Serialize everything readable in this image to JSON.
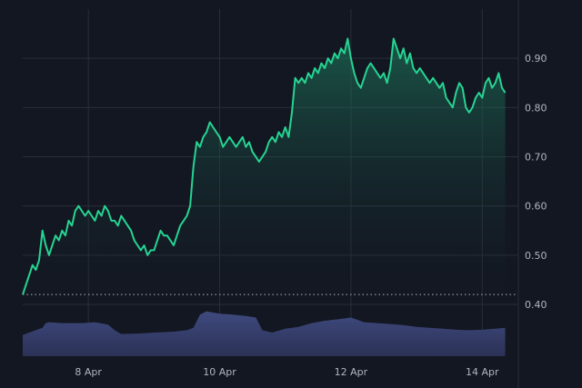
{
  "chart_data": {
    "type": "area",
    "title": "",
    "xlabel": "",
    "ylabel": "",
    "ylim": [
      0.4,
      1.0
    ],
    "y_axis_position": "right",
    "grid": true,
    "x_tick_labels": [
      "8 Apr",
      "10 Apr",
      "12 Apr",
      "14 Apr"
    ],
    "x_tick_positions": [
      1.0,
      3.0,
      5.0,
      7.0
    ],
    "y_ticks": [
      0.4,
      0.5,
      0.6,
      0.7,
      0.8,
      0.9
    ],
    "y_tick_labels": [
      "0.40",
      "0.50",
      "0.60",
      "0.70",
      "0.80",
      "0.90"
    ],
    "reference_line": 0.42,
    "xlim": [
      0.0,
      7.55
    ],
    "series": [
      {
        "role": "price",
        "color": "#26d492",
        "points": [
          [
            0.0,
            0.42
          ],
          [
            0.05,
            0.44
          ],
          [
            0.1,
            0.46
          ],
          [
            0.15,
            0.48
          ],
          [
            0.2,
            0.47
          ],
          [
            0.25,
            0.49
          ],
          [
            0.3,
            0.55
          ],
          [
            0.35,
            0.52
          ],
          [
            0.4,
            0.5
          ],
          [
            0.45,
            0.52
          ],
          [
            0.5,
            0.54
          ],
          [
            0.55,
            0.53
          ],
          [
            0.6,
            0.55
          ],
          [
            0.65,
            0.54
          ],
          [
            0.7,
            0.57
          ],
          [
            0.75,
            0.56
          ],
          [
            0.8,
            0.59
          ],
          [
            0.85,
            0.6
          ],
          [
            0.9,
            0.59
          ],
          [
            0.95,
            0.58
          ],
          [
            1.0,
            0.59
          ],
          [
            1.05,
            0.58
          ],
          [
            1.1,
            0.57
          ],
          [
            1.15,
            0.59
          ],
          [
            1.2,
            0.58
          ],
          [
            1.25,
            0.6
          ],
          [
            1.3,
            0.59
          ],
          [
            1.35,
            0.57
          ],
          [
            1.4,
            0.57
          ],
          [
            1.45,
            0.56
          ],
          [
            1.5,
            0.58
          ],
          [
            1.55,
            0.57
          ],
          [
            1.6,
            0.56
          ],
          [
            1.65,
            0.55
          ],
          [
            1.7,
            0.53
          ],
          [
            1.75,
            0.52
          ],
          [
            1.8,
            0.51
          ],
          [
            1.85,
            0.52
          ],
          [
            1.9,
            0.5
          ],
          [
            1.95,
            0.51
          ],
          [
            2.0,
            0.51
          ],
          [
            2.05,
            0.53
          ],
          [
            2.1,
            0.55
          ],
          [
            2.15,
            0.54
          ],
          [
            2.2,
            0.54
          ],
          [
            2.25,
            0.53
          ],
          [
            2.3,
            0.52
          ],
          [
            2.35,
            0.54
          ],
          [
            2.4,
            0.56
          ],
          [
            2.45,
            0.57
          ],
          [
            2.5,
            0.58
          ],
          [
            2.55,
            0.6
          ],
          [
            2.6,
            0.68
          ],
          [
            2.65,
            0.73
          ],
          [
            2.7,
            0.72
          ],
          [
            2.75,
            0.74
          ],
          [
            2.8,
            0.75
          ],
          [
            2.85,
            0.77
          ],
          [
            2.9,
            0.76
          ],
          [
            2.95,
            0.75
          ],
          [
            3.0,
            0.74
          ],
          [
            3.05,
            0.72
          ],
          [
            3.1,
            0.73
          ],
          [
            3.15,
            0.74
          ],
          [
            3.2,
            0.73
          ],
          [
            3.25,
            0.72
          ],
          [
            3.3,
            0.73
          ],
          [
            3.35,
            0.74
          ],
          [
            3.4,
            0.72
          ],
          [
            3.45,
            0.73
          ],
          [
            3.5,
            0.71
          ],
          [
            3.55,
            0.7
          ],
          [
            3.6,
            0.69
          ],
          [
            3.65,
            0.7
          ],
          [
            3.7,
            0.71
          ],
          [
            3.75,
            0.73
          ],
          [
            3.8,
            0.74
          ],
          [
            3.85,
            0.73
          ],
          [
            3.9,
            0.75
          ],
          [
            3.95,
            0.74
          ],
          [
            4.0,
            0.76
          ],
          [
            4.05,
            0.74
          ],
          [
            4.1,
            0.79
          ],
          [
            4.15,
            0.86
          ],
          [
            4.2,
            0.85
          ],
          [
            4.25,
            0.86
          ],
          [
            4.3,
            0.85
          ],
          [
            4.35,
            0.87
          ],
          [
            4.4,
            0.86
          ],
          [
            4.45,
            0.88
          ],
          [
            4.5,
            0.87
          ],
          [
            4.55,
            0.89
          ],
          [
            4.6,
            0.88
          ],
          [
            4.65,
            0.9
          ],
          [
            4.7,
            0.89
          ],
          [
            4.75,
            0.91
          ],
          [
            4.8,
            0.9
          ],
          [
            4.85,
            0.92
          ],
          [
            4.9,
            0.91
          ],
          [
            4.95,
            0.94
          ],
          [
            5.0,
            0.9
          ],
          [
            5.05,
            0.87
          ],
          [
            5.1,
            0.85
          ],
          [
            5.15,
            0.84
          ],
          [
            5.2,
            0.86
          ],
          [
            5.25,
            0.88
          ],
          [
            5.3,
            0.89
          ],
          [
            5.35,
            0.88
          ],
          [
            5.4,
            0.87
          ],
          [
            5.45,
            0.86
          ],
          [
            5.5,
            0.87
          ],
          [
            5.55,
            0.85
          ],
          [
            5.6,
            0.88
          ],
          [
            5.65,
            0.94
          ],
          [
            5.7,
            0.92
          ],
          [
            5.75,
            0.9
          ],
          [
            5.8,
            0.92
          ],
          [
            5.85,
            0.89
          ],
          [
            5.9,
            0.91
          ],
          [
            5.95,
            0.88
          ],
          [
            6.0,
            0.87
          ],
          [
            6.05,
            0.88
          ],
          [
            6.1,
            0.87
          ],
          [
            6.15,
            0.86
          ],
          [
            6.2,
            0.85
          ],
          [
            6.25,
            0.86
          ],
          [
            6.3,
            0.85
          ],
          [
            6.35,
            0.84
          ],
          [
            6.4,
            0.85
          ],
          [
            6.45,
            0.82
          ],
          [
            6.5,
            0.81
          ],
          [
            6.55,
            0.8
          ],
          [
            6.6,
            0.83
          ],
          [
            6.65,
            0.85
          ],
          [
            6.7,
            0.84
          ],
          [
            6.75,
            0.8
          ],
          [
            6.8,
            0.79
          ],
          [
            6.85,
            0.8
          ],
          [
            6.9,
            0.82
          ],
          [
            6.95,
            0.83
          ],
          [
            7.0,
            0.82
          ],
          [
            7.05,
            0.85
          ],
          [
            7.1,
            0.86
          ],
          [
            7.15,
            0.84
          ],
          [
            7.2,
            0.85
          ],
          [
            7.25,
            0.87
          ],
          [
            7.3,
            0.84
          ],
          [
            7.35,
            0.83
          ]
        ]
      },
      {
        "role": "volume",
        "color": "#3a4270",
        "relative_levels": [
          [
            0.0,
            0.45
          ],
          [
            0.2,
            0.55
          ],
          [
            0.3,
            0.6
          ],
          [
            0.35,
            0.7
          ],
          [
            0.4,
            0.72
          ],
          [
            0.6,
            0.7
          ],
          [
            0.9,
            0.7
          ],
          [
            1.1,
            0.72
          ],
          [
            1.3,
            0.67
          ],
          [
            1.4,
            0.55
          ],
          [
            1.5,
            0.47
          ],
          [
            1.8,
            0.48
          ],
          [
            2.0,
            0.5
          ],
          [
            2.3,
            0.52
          ],
          [
            2.5,
            0.55
          ],
          [
            2.6,
            0.6
          ],
          [
            2.7,
            0.88
          ],
          [
            2.8,
            0.95
          ],
          [
            3.0,
            0.9
          ],
          [
            3.2,
            0.88
          ],
          [
            3.4,
            0.85
          ],
          [
            3.55,
            0.82
          ],
          [
            3.65,
            0.55
          ],
          [
            3.8,
            0.5
          ],
          [
            4.0,
            0.58
          ],
          [
            4.2,
            0.62
          ],
          [
            4.4,
            0.7
          ],
          [
            4.6,
            0.75
          ],
          [
            4.8,
            0.78
          ],
          [
            5.0,
            0.82
          ],
          [
            5.2,
            0.72
          ],
          [
            5.4,
            0.7
          ],
          [
            5.6,
            0.68
          ],
          [
            5.8,
            0.66
          ],
          [
            6.0,
            0.62
          ],
          [
            6.2,
            0.6
          ],
          [
            6.4,
            0.58
          ],
          [
            6.6,
            0.56
          ],
          [
            6.8,
            0.55
          ],
          [
            7.0,
            0.56
          ],
          [
            7.2,
            0.58
          ],
          [
            7.35,
            0.6
          ]
        ]
      }
    ]
  }
}
